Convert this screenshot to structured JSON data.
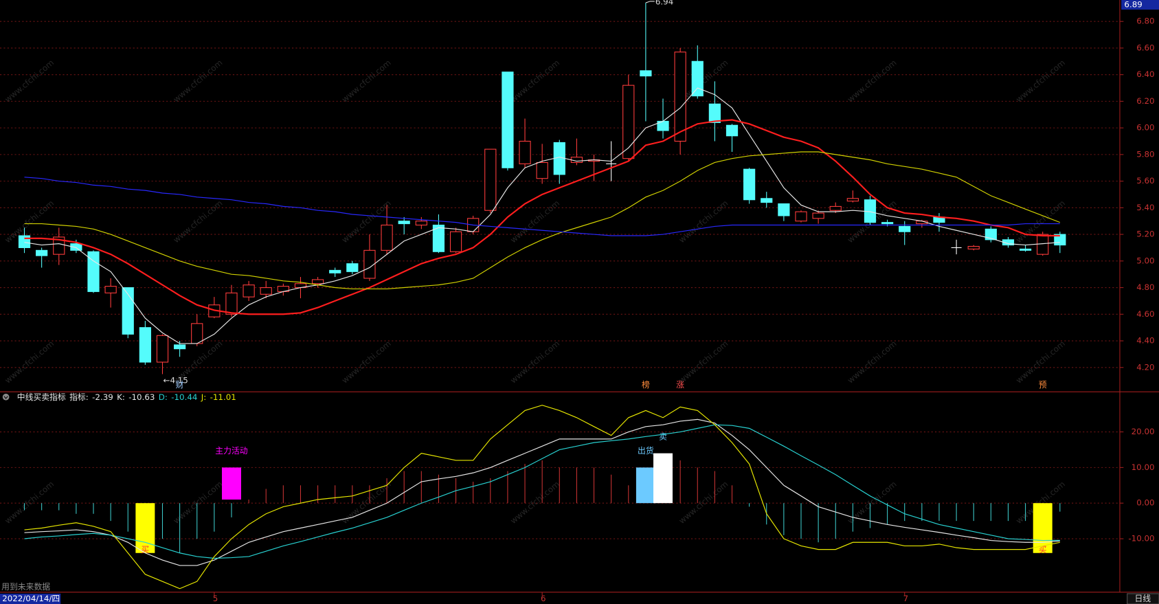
{
  "chart_data": [
    {
      "type": "candlestick",
      "categories": [
        null,
        null,
        null,
        null,
        null,
        null,
        null,
        null,
        null,
        null,
        null,
        "5",
        null,
        null,
        null,
        null,
        null,
        null,
        null,
        null,
        null,
        null,
        null,
        null,
        null,
        null,
        null,
        null,
        null,
        null,
        "6",
        null,
        null,
        null,
        null,
        null,
        null,
        null,
        null,
        null,
        null,
        null,
        null,
        null,
        null,
        null,
        null,
        null,
        null,
        null,
        null,
        "7",
        null,
        null,
        null,
        null,
        null,
        null,
        null,
        null,
        null
      ],
      "open": [
        5.19,
        5.08,
        5.05,
        5.13,
        5.07,
        4.76,
        4.8,
        4.5,
        4.24,
        4.37,
        4.38,
        4.58,
        4.6,
        4.73,
        4.75,
        4.77,
        4.8,
        4.83,
        4.93,
        4.98,
        4.87,
        5.08,
        5.3,
        5.27,
        5.27,
        5.07,
        5.22,
        5.38,
        6.42,
        5.73,
        5.62,
        5.89,
        5.74,
        5.75,
        5.73,
        5.77,
        6.43,
        6.05,
        5.9,
        6.5,
        6.18,
        6.02,
        5.69,
        5.47,
        5.43,
        5.3,
        5.32,
        5.38,
        5.45,
        5.46,
        5.29,
        5.26,
        5.28,
        5.33,
        5.1,
        5.09,
        5.24,
        5.16,
        5.09,
        5.05,
        5.2
      ],
      "high": [
        5.25,
        5.1,
        5.25,
        5.16,
        5.08,
        4.87,
        4.8,
        4.55,
        4.45,
        4.4,
        4.6,
        4.73,
        4.82,
        4.85,
        4.85,
        4.83,
        4.88,
        4.88,
        4.95,
        5.0,
        5.2,
        5.42,
        5.33,
        5.33,
        5.35,
        5.25,
        5.34,
        5.84,
        6.42,
        6.07,
        5.88,
        5.91,
        5.92,
        5.8,
        5.9,
        6.4,
        6.94,
        6.22,
        6.6,
        6.62,
        6.35,
        6.03,
        5.7,
        5.52,
        5.43,
        5.38,
        5.38,
        5.44,
        5.53,
        5.49,
        5.31,
        5.3,
        5.31,
        5.36,
        5.16,
        5.12,
        5.26,
        5.18,
        5.12,
        5.22,
        5.22
      ],
      "low": [
        5.06,
        4.95,
        4.97,
        5.06,
        4.76,
        4.65,
        4.42,
        4.22,
        4.15,
        4.28,
        4.36,
        4.57,
        4.58,
        4.7,
        4.72,
        4.74,
        4.72,
        4.8,
        4.88,
        4.9,
        4.85,
        5.05,
        5.2,
        5.24,
        5.06,
        5.06,
        5.2,
        5.36,
        5.68,
        5.7,
        5.58,
        5.58,
        5.72,
        5.6,
        5.6,
        5.75,
        6.05,
        5.92,
        5.8,
        6.22,
        5.9,
        5.82,
        5.43,
        5.4,
        5.3,
        5.29,
        5.28,
        5.36,
        5.44,
        5.27,
        5.26,
        5.12,
        5.25,
        5.22,
        5.05,
        5.08,
        5.14,
        5.1,
        5.07,
        5.04,
        5.06
      ],
      "close": [
        5.1,
        5.04,
        5.18,
        5.08,
        4.77,
        4.81,
        4.45,
        4.24,
        4.44,
        4.34,
        4.53,
        4.67,
        4.76,
        4.82,
        4.8,
        4.81,
        4.83,
        4.86,
        4.91,
        4.92,
        5.08,
        5.27,
        5.28,
        5.3,
        5.07,
        5.22,
        5.32,
        5.84,
        5.7,
        5.9,
        5.74,
        5.65,
        5.78,
        5.76,
        5.73,
        6.32,
        6.39,
        5.98,
        6.57,
        6.24,
        6.04,
        5.94,
        5.46,
        5.44,
        5.34,
        5.37,
        5.36,
        5.41,
        5.47,
        5.29,
        5.28,
        5.22,
        5.3,
        5.29,
        5.1,
        5.11,
        5.16,
        5.12,
        5.08,
        5.2,
        5.12
      ],
      "up_color": "#ff3c3c",
      "down_color": "#54fcfc",
      "flat_color": "#ffffff",
      "series": [
        {
          "color": "#e6e6e6",
          "values": [
            5.14,
            5.12,
            5.13,
            5.1,
            5.0,
            4.92,
            4.75,
            4.57,
            4.46,
            4.38,
            4.38,
            4.45,
            4.57,
            4.67,
            4.73,
            4.77,
            4.8,
            4.82,
            4.85,
            4.89,
            4.95,
            5.05,
            5.15,
            5.2,
            5.25,
            5.24,
            5.22,
            5.35,
            5.55,
            5.7,
            5.75,
            5.78,
            5.75,
            5.76,
            5.75,
            5.85,
            6.0,
            6.05,
            6.15,
            6.3,
            6.25,
            6.15,
            5.95,
            5.75,
            5.55,
            5.42,
            5.37,
            5.37,
            5.38,
            5.37,
            5.34,
            5.32,
            5.3,
            5.26,
            5.23,
            5.2,
            5.17,
            5.13,
            5.12,
            5.13,
            5.14
          ]
        },
        {
          "color": "#ff1e1e",
          "values": [
            5.17,
            5.17,
            5.16,
            5.14,
            5.1,
            5.05,
            4.98,
            4.9,
            4.82,
            4.74,
            4.67,
            4.63,
            4.61,
            4.6,
            4.6,
            4.6,
            4.61,
            4.65,
            4.7,
            4.75,
            4.8,
            4.86,
            4.92,
            4.98,
            5.02,
            5.05,
            5.1,
            5.2,
            5.33,
            5.43,
            5.5,
            5.55,
            5.6,
            5.65,
            5.7,
            5.75,
            5.87,
            5.9,
            5.97,
            6.03,
            6.05,
            6.06,
            6.03,
            5.98,
            5.93,
            5.9,
            5.85,
            5.75,
            5.63,
            5.5,
            5.4,
            5.36,
            5.35,
            5.33,
            5.32,
            5.3,
            5.27,
            5.25,
            5.2,
            5.19,
            5.19
          ]
        },
        {
          "color": "#d2d200",
          "values": [
            5.28,
            5.28,
            5.27,
            5.26,
            5.24,
            5.2,
            5.15,
            5.1,
            5.05,
            5.0,
            4.96,
            4.93,
            4.9,
            4.89,
            4.87,
            4.85,
            4.84,
            4.82,
            4.8,
            4.79,
            4.79,
            4.79,
            4.8,
            4.81,
            4.82,
            4.84,
            4.87,
            4.95,
            5.03,
            5.1,
            5.16,
            5.21,
            5.25,
            5.29,
            5.33,
            5.4,
            5.48,
            5.53,
            5.6,
            5.68,
            5.74,
            5.77,
            5.79,
            5.8,
            5.81,
            5.82,
            5.82,
            5.8,
            5.78,
            5.76,
            5.73,
            5.71,
            5.69,
            5.66,
            5.63,
            5.56,
            5.49,
            5.44,
            5.39,
            5.34,
            5.29
          ]
        },
        {
          "color": "#2828ff",
          "values": [
            5.63,
            5.62,
            5.6,
            5.59,
            5.57,
            5.56,
            5.54,
            5.53,
            5.51,
            5.5,
            5.48,
            5.47,
            5.46,
            5.44,
            5.43,
            5.41,
            5.4,
            5.38,
            5.37,
            5.35,
            5.34,
            5.33,
            5.32,
            5.31,
            5.3,
            5.29,
            5.27,
            5.26,
            5.25,
            5.24,
            5.23,
            5.22,
            5.21,
            5.2,
            5.19,
            5.19,
            5.19,
            5.2,
            5.22,
            5.24,
            5.26,
            5.27,
            5.27,
            5.27,
            5.27,
            5.27,
            5.27,
            5.27,
            5.27,
            5.27,
            5.27,
            5.27,
            5.27,
            5.27,
            5.27,
            5.27,
            5.27,
            5.27,
            5.28,
            5.28,
            5.28
          ]
        }
      ],
      "ylim": [
        4.017,
        6.961
      ],
      "yticks": [
        {
          "value": 4.2,
          "label": "4.20"
        },
        {
          "value": 4.4,
          "label": "4.40"
        },
        {
          "value": 4.6,
          "label": "4.60"
        },
        {
          "value": 4.8,
          "label": "4.80"
        },
        {
          "value": 5.0,
          "label": "5.00"
        },
        {
          "value": 5.2,
          "label": "5.20"
        },
        {
          "value": 5.4,
          "label": "5.40"
        },
        {
          "value": 5.6,
          "label": "5.60"
        },
        {
          "value": 5.8,
          "label": "5.80"
        },
        {
          "value": 6.0,
          "label": "6.00"
        },
        {
          "value": 6.2,
          "label": "6.20"
        },
        {
          "value": 6.4,
          "label": "6.40"
        },
        {
          "value": 6.6,
          "label": "6.60"
        },
        {
          "value": 6.8,
          "label": "6.80"
        }
      ],
      "grid": true,
      "cursor_price": 6.89,
      "extremes": [
        {
          "index": 36,
          "label": "6.94",
          "arrow": "top"
        },
        {
          "index": 8,
          "label": "←4.15",
          "arrow": "bottom"
        }
      ],
      "markers": [
        {
          "index": 9,
          "text": "财",
          "color": "#9ecbff"
        },
        {
          "index": 36,
          "text": "榜",
          "color": "#ff8c3c"
        },
        {
          "index": 38,
          "text": "涨",
          "color": "#ff5050"
        },
        {
          "index": 59,
          "text": "预",
          "color": "#ff8c3c"
        }
      ]
    },
    {
      "type": "indicator",
      "title": "中线买卖指标",
      "name": "指标:",
      "values": [
        -2,
        -2,
        -2,
        -3,
        -3,
        -5,
        -8,
        -10,
        -10,
        -14,
        -10,
        -8,
        -4,
        1,
        4,
        5,
        5,
        5,
        5,
        5,
        5,
        7,
        9,
        9,
        8,
        7,
        6,
        7,
        9,
        11,
        12,
        10,
        10,
        10,
        8,
        5,
        6,
        8,
        12,
        10,
        9,
        5,
        -1,
        -6,
        -9,
        -10,
        -11,
        -10,
        -8,
        -7,
        -6,
        -5,
        -5,
        -5,
        -5,
        -5,
        -5,
        -5,
        -5,
        -5,
        -2.39
      ],
      "up_color": "#c83232",
      "down_color": "#3cc8c8",
      "series": [
        {
          "name": "K:",
          "color": "#e6e6e6",
          "values": [
            -8.3,
            -8,
            -7.8,
            -7.5,
            -8,
            -9,
            -11,
            -14,
            -16,
            -17.5,
            -17.5,
            -16,
            -13.5,
            -11,
            -9.5,
            -8,
            -7,
            -6,
            -5,
            -4,
            -2,
            0,
            3,
            6,
            6.8,
            7.5,
            8.5,
            10,
            12,
            14,
            16,
            18,
            18,
            18,
            18,
            20,
            21.5,
            22,
            23,
            23.5,
            22.5,
            19,
            15,
            10,
            5,
            2,
            -1,
            -2.5,
            -4,
            -5,
            -6,
            -6.8,
            -7.5,
            -8.2,
            -9,
            -9.7,
            -10.5,
            -10.8,
            -11,
            -11,
            -10.63
          ]
        },
        {
          "name": "D:",
          "color": "#28d2d2",
          "values": [
            -10,
            -9.5,
            -9.2,
            -8.8,
            -8.5,
            -9,
            -10,
            -11,
            -12.5,
            -14,
            -15,
            -15.5,
            -15.3,
            -15,
            -13.5,
            -12,
            -10.8,
            -9.5,
            -8.2,
            -7,
            -5.5,
            -4,
            -2,
            0,
            1.7,
            3.5,
            4.7,
            6,
            8,
            10,
            12.5,
            15,
            16,
            17,
            17.5,
            18,
            18.7,
            19.3,
            20,
            21,
            22,
            21.8,
            21,
            18.5,
            16,
            13.3,
            10.7,
            8,
            5,
            2,
            -0.5,
            -3,
            -4.5,
            -6,
            -7,
            -8,
            -9,
            -10,
            -10.2,
            -10.5,
            -10.44
          ]
        },
        {
          "name": "J:",
          "color": "#e6e600",
          "values": [
            -7.5,
            -7,
            -6.2,
            -5.5,
            -6.5,
            -8,
            -14,
            -20,
            -22,
            -24,
            -22,
            -15,
            -10,
            -6,
            -3,
            -1,
            0,
            1,
            1.5,
            2,
            3.5,
            5,
            10,
            14,
            13,
            12,
            12,
            18,
            22,
            26,
            27.5,
            26,
            24,
            21.5,
            19,
            24,
            26,
            24,
            27,
            26,
            22,
            17,
            11,
            -3,
            -10,
            -12,
            -13,
            -13,
            -11,
            -11,
            -11,
            -12,
            -12,
            -11.5,
            -12.5,
            -13,
            -13,
            -13,
            -13,
            -12,
            -11.01
          ]
        }
      ],
      "signals": [
        {
          "index": 7,
          "range": [
            0,
            -14
          ],
          "color": "#ffff00",
          "label": "买",
          "label_color": "#ff3030"
        },
        {
          "index": 12,
          "range": [
            1,
            10
          ],
          "color": "#ff00ff",
          "label": "主力活动",
          "label_color": "#ff00ff"
        },
        {
          "index": 36,
          "range": [
            0,
            10
          ],
          "color": "#6ccaff",
          "label": "出货",
          "label_color": "#6ccaff"
        },
        {
          "index": 37,
          "range": [
            0,
            14
          ],
          "color": "#ffffff",
          "label": "卖",
          "label_color": "#6ccaff"
        },
        {
          "index": 59,
          "range": [
            0,
            -14
          ],
          "color": "#ffff00",
          "label": "买",
          "label_color": "#ff3030"
        }
      ],
      "ylim": [
        -25,
        31.25
      ],
      "yticks": [
        {
          "value": -10,
          "label": "-10.00"
        },
        {
          "value": 0,
          "label": "0.00"
        },
        {
          "value": 10,
          "label": "10.00"
        },
        {
          "value": 20,
          "label": "20.00"
        }
      ],
      "grid": true
    }
  ],
  "footer": {
    "date": "2022/04/14/四",
    "period": "日线",
    "note": "用到未来数据"
  },
  "watermark": "www.cfchi.com"
}
